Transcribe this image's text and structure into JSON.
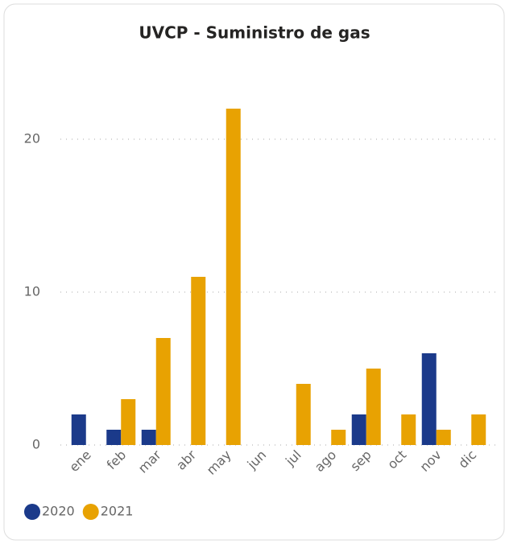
{
  "chart_data": {
    "type": "bar",
    "title": "UVCP - Suministro de gas",
    "categories": [
      "ene",
      "feb",
      "mar",
      "abr",
      "may",
      "jun",
      "jul",
      "ago",
      "sep",
      "oct",
      "nov",
      "dic"
    ],
    "series": [
      {
        "name": "2020",
        "color": "#1b3a8a",
        "values": [
          2,
          1,
          1,
          0,
          0,
          0,
          0,
          0,
          2,
          0,
          6,
          0
        ]
      },
      {
        "name": "2021",
        "color": "#e8a202",
        "values": [
          0,
          3,
          7,
          11,
          22,
          0,
          4,
          1,
          5,
          2,
          1,
          2
        ]
      }
    ],
    "ylim": [
      0,
      24
    ],
    "yticks": [
      0,
      10,
      20
    ],
    "grid": true,
    "legend": "bottom-left"
  }
}
